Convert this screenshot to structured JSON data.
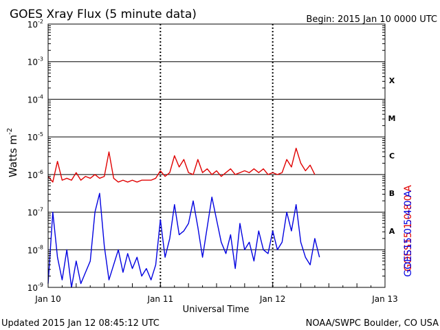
{
  "header": {
    "title": "GOES Xray Flux (5 minute data)",
    "begin": "Begin:  2015 Jan 10 0000 UTC"
  },
  "footer": {
    "updated": "Updated 2015 Jan 12 08:45:12 UTC",
    "credit": "NOAA/SWPC Boulder, CO USA"
  },
  "colors": {
    "long_channel": "#e00000",
    "short_channel": "#0000e0",
    "axis": "#000000"
  },
  "chart_data": {
    "type": "line",
    "title": "GOES Xray Flux (5 minute data)",
    "xlabel": "Universal Time",
    "ylabel": "Watts m",
    "ylabel_superscript": "-2",
    "yscale": "log",
    "ylim": [
      1e-09,
      0.01
    ],
    "xlim": [
      0,
      72
    ],
    "x_unit": "hours since 2015 Jan 10 0000 UTC",
    "grid": true,
    "x_ticks": [
      {
        "x": 0,
        "label": "Jan 10"
      },
      {
        "x": 24,
        "label": "Jan 11"
      },
      {
        "x": 48,
        "label": "Jan 12"
      },
      {
        "x": 72,
        "label": "Jan 13"
      }
    ],
    "y_ticks": [
      {
        "exp": -2,
        "base": "10",
        "sup": "-2"
      },
      {
        "exp": -3,
        "base": "10",
        "sup": "-3"
      },
      {
        "exp": -4,
        "base": "10",
        "sup": "-4"
      },
      {
        "exp": -5,
        "base": "10",
        "sup": "-5"
      },
      {
        "exp": -6,
        "base": "10",
        "sup": "-6"
      },
      {
        "exp": -7,
        "base": "10",
        "sup": "-7"
      },
      {
        "exp": -8,
        "base": "10",
        "sup": "-8"
      },
      {
        "exp": -9,
        "base": "10",
        "sup": "-9"
      }
    ],
    "flare_classes": [
      {
        "label": "X",
        "exp": -3.5
      },
      {
        "label": "M",
        "exp": -4.5
      },
      {
        "label": "C",
        "exp": -5.5
      },
      {
        "label": "B",
        "exp": -6.5
      },
      {
        "label": "A",
        "exp": -7.5
      }
    ],
    "series": [
      {
        "name": "GOES15 1.0-8.0 A",
        "color": "#e00000",
        "points": [
          [
            0,
            -6.05
          ],
          [
            1,
            -6.2
          ],
          [
            2,
            -5.65
          ],
          [
            3,
            -6.15
          ],
          [
            4,
            -6.1
          ],
          [
            5,
            -6.15
          ],
          [
            6,
            -5.95
          ],
          [
            7,
            -6.15
          ],
          [
            8,
            -6.05
          ],
          [
            9,
            -6.1
          ],
          [
            10,
            -6.0
          ],
          [
            11,
            -6.1
          ],
          [
            12,
            -6.05
          ],
          [
            13,
            -5.4
          ],
          [
            14,
            -6.1
          ],
          [
            15,
            -6.2
          ],
          [
            16,
            -6.15
          ],
          [
            17,
            -6.2
          ],
          [
            18,
            -6.15
          ],
          [
            19,
            -6.2
          ],
          [
            20,
            -6.15
          ],
          [
            21,
            -6.15
          ],
          [
            22,
            -6.15
          ],
          [
            23,
            -6.1
          ],
          [
            24,
            -5.9
          ],
          [
            25,
            -6.05
          ],
          [
            26,
            -5.95
          ],
          [
            27,
            -5.5
          ],
          [
            28,
            -5.8
          ],
          [
            29,
            -5.6
          ],
          [
            30,
            -5.95
          ],
          [
            31,
            -6.0
          ],
          [
            32,
            -5.6
          ],
          [
            33,
            -5.95
          ],
          [
            34,
            -5.85
          ],
          [
            35,
            -6.0
          ],
          [
            36,
            -5.9
          ],
          [
            37,
            -6.05
          ],
          [
            38,
            -5.95
          ],
          [
            39,
            -5.85
          ],
          [
            40,
            -6.0
          ],
          [
            41,
            -5.95
          ],
          [
            42,
            -5.9
          ],
          [
            43,
            -5.95
          ],
          [
            44,
            -5.85
          ],
          [
            45,
            -5.95
          ],
          [
            46,
            -5.85
          ],
          [
            47,
            -6.0
          ],
          [
            48,
            -5.95
          ],
          [
            49,
            -6.0
          ],
          [
            50,
            -5.95
          ],
          [
            51,
            -5.6
          ],
          [
            52,
            -5.8
          ],
          [
            53,
            -5.3
          ],
          [
            54,
            -5.7
          ],
          [
            55,
            -5.9
          ],
          [
            56,
            -5.75
          ],
          [
            57,
            -6.0
          ]
        ]
      },
      {
        "name": "GOES15 0.5-4.0 A",
        "color": "#0000e0",
        "points": [
          [
            0,
            -8.9
          ],
          [
            1,
            -7.0
          ],
          [
            2,
            -8.2
          ],
          [
            3,
            -8.8
          ],
          [
            4,
            -8.0
          ],
          [
            5,
            -9.0
          ],
          [
            6,
            -8.3
          ],
          [
            7,
            -8.9
          ],
          [
            8,
            -8.6
          ],
          [
            9,
            -8.3
          ],
          [
            10,
            -7.0
          ],
          [
            11,
            -6.5
          ],
          [
            12,
            -7.9
          ],
          [
            13,
            -8.8
          ],
          [
            14,
            -8.4
          ],
          [
            15,
            -8.0
          ],
          [
            16,
            -8.6
          ],
          [
            17,
            -8.1
          ],
          [
            18,
            -8.5
          ],
          [
            19,
            -8.2
          ],
          [
            20,
            -8.7
          ],
          [
            21,
            -8.5
          ],
          [
            22,
            -8.8
          ],
          [
            23,
            -8.4
          ],
          [
            24,
            -7.2
          ],
          [
            25,
            -8.2
          ],
          [
            26,
            -7.7
          ],
          [
            27,
            -6.8
          ],
          [
            28,
            -7.6
          ],
          [
            29,
            -7.5
          ],
          [
            30,
            -7.3
          ],
          [
            31,
            -6.7
          ],
          [
            32,
            -7.4
          ],
          [
            33,
            -8.2
          ],
          [
            34,
            -7.4
          ],
          [
            35,
            -6.6
          ],
          [
            36,
            -7.2
          ],
          [
            37,
            -7.8
          ],
          [
            38,
            -8.1
          ],
          [
            39,
            -7.6
          ],
          [
            40,
            -8.5
          ],
          [
            41,
            -7.3
          ],
          [
            42,
            -8.0
          ],
          [
            43,
            -7.8
          ],
          [
            44,
            -8.3
          ],
          [
            45,
            -7.5
          ],
          [
            46,
            -8.0
          ],
          [
            47,
            -8.1
          ],
          [
            48,
            -7.5
          ],
          [
            49,
            -8.0
          ],
          [
            50,
            -7.8
          ],
          [
            51,
            -7.0
          ],
          [
            52,
            -7.5
          ],
          [
            53,
            -6.8
          ],
          [
            54,
            -7.8
          ],
          [
            55,
            -8.2
          ],
          [
            56,
            -8.4
          ],
          [
            57,
            -7.7
          ],
          [
            58,
            -8.2
          ]
        ]
      }
    ]
  }
}
